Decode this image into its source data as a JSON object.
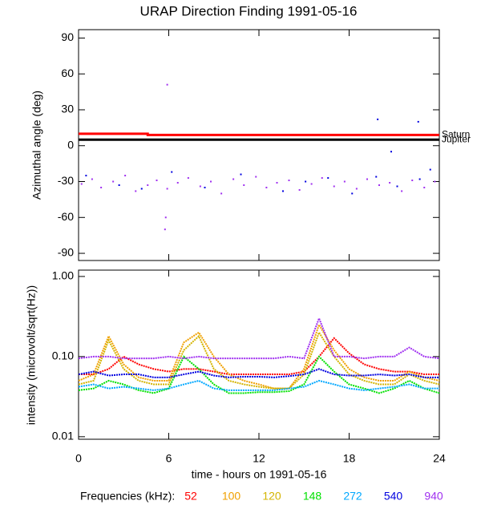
{
  "chart_data": [
    {
      "type": "scatter",
      "title": "URAP Direction Finding  1991-05-16",
      "ylabel": "Azimuthal angle (deg)",
      "xlim": [
        0,
        24
      ],
      "xticks": [
        0,
        6,
        12,
        18,
        24
      ],
      "ylim": [
        -96,
        97
      ],
      "yticks": [
        -90,
        -60,
        -30,
        0,
        30,
        60,
        90
      ],
      "series": [
        {
          "color": "#a030f0",
          "x": [
            0.2,
            0.9,
            1.5,
            2.3,
            3.1,
            3.8,
            4.6,
            5.2,
            5.9,
            6.6,
            7.3,
            8.1,
            8.8,
            9.5,
            10.3,
            11.0,
            11.8,
            12.5,
            13.2,
            14.0,
            14.7,
            15.5,
            16.2,
            17.0,
            17.7,
            18.5,
            19.2,
            20.0,
            20.7,
            21.5,
            22.2,
            23.0,
            23.7,
            5.9,
            5.8,
            5.75
          ],
          "values": [
            -32,
            -28,
            -35,
            -30,
            -25,
            -38,
            -33,
            -29,
            -36,
            -31,
            -27,
            -34,
            -30,
            -40,
            -28,
            -33,
            -26,
            -35,
            -31,
            -29,
            -37,
            -32,
            -27,
            -34,
            -30,
            -36,
            -28,
            -33,
            -31,
            -38,
            -29,
            -35,
            -30,
            51,
            -60,
            -70
          ]
        },
        {
          "color": "#0000e0",
          "x": [
            0.5,
            2.7,
            4.2,
            6.2,
            8.4,
            10.8,
            13.6,
            15.1,
            16.6,
            18.2,
            19.8,
            21.2,
            22.6,
            23.4,
            20.8,
            19.9,
            22.7
          ],
          "values": [
            -25,
            -33,
            -36,
            -22,
            -35,
            -24,
            -38,
            -30,
            -27,
            -40,
            -26,
            -34,
            20,
            -20,
            -5,
            22,
            -28
          ]
        },
        {
          "name": "Saturn",
          "style": "line",
          "color": "#ff0000",
          "x": [
            0,
            4.6,
            4.6,
            24
          ],
          "values": [
            10,
            10,
            9,
            9
          ]
        },
        {
          "name": "Jupiter",
          "style": "line",
          "color": "#000000",
          "x": [
            0,
            24
          ],
          "values": [
            5,
            5
          ]
        }
      ]
    },
    {
      "type": "line",
      "ylabel": "intensity (microvolt/sqrt(Hz))",
      "xlabel": "time - hours on 1991-05-16",
      "log_scale": true,
      "legend_title": "Frequencies (kHz):",
      "xlim": [
        0,
        24
      ],
      "xticks": [
        0,
        6,
        12,
        18,
        24
      ],
      "ylim": [
        0.0093,
        1.2
      ],
      "yticks": [
        {
          "value": 0.01,
          "label": "0.01"
        },
        {
          "value": 0.1,
          "label": "0.10"
        },
        {
          "value": 1,
          "label": "1.00"
        }
      ],
      "x": [
        0,
        1,
        2,
        3,
        4,
        5,
        6,
        7,
        8,
        9,
        10,
        11,
        12,
        13,
        14,
        15,
        16,
        17,
        18,
        19,
        20,
        21,
        22,
        23,
        24
      ],
      "series": [
        {
          "name": "52",
          "color": "#ff0000",
          "values": [
            0.06,
            0.06,
            0.07,
            0.1,
            0.08,
            0.07,
            0.065,
            0.07,
            0.07,
            0.065,
            0.06,
            0.06,
            0.06,
            0.06,
            0.06,
            0.065,
            0.1,
            0.17,
            0.11,
            0.08,
            0.07,
            0.065,
            0.065,
            0.06,
            0.06
          ]
        },
        {
          "name": "100",
          "color": "#f0a000",
          "values": [
            0.05,
            0.06,
            0.18,
            0.08,
            0.055,
            0.05,
            0.05,
            0.15,
            0.2,
            0.1,
            0.06,
            0.05,
            0.045,
            0.04,
            0.04,
            0.07,
            0.25,
            0.12,
            0.07,
            0.055,
            0.05,
            0.05,
            0.065,
            0.055,
            0.05
          ]
        },
        {
          "name": "120",
          "color": "#d4b400",
          "values": [
            0.045,
            0.05,
            0.16,
            0.07,
            0.05,
            0.045,
            0.045,
            0.12,
            0.18,
            0.07,
            0.05,
            0.045,
            0.042,
            0.04,
            0.04,
            0.06,
            0.2,
            0.1,
            0.06,
            0.05,
            0.045,
            0.045,
            0.06,
            0.05,
            0.045
          ]
        },
        {
          "name": "148",
          "color": "#00e000",
          "values": [
            0.038,
            0.04,
            0.05,
            0.045,
            0.038,
            0.035,
            0.04,
            0.1,
            0.07,
            0.045,
            0.035,
            0.035,
            0.036,
            0.036,
            0.037,
            0.045,
            0.1,
            0.065,
            0.045,
            0.04,
            0.035,
            0.04,
            0.05,
            0.04,
            0.035
          ]
        },
        {
          "name": "272",
          "color": "#00a8ff",
          "values": [
            0.042,
            0.045,
            0.04,
            0.042,
            0.04,
            0.038,
            0.04,
            0.045,
            0.05,
            0.04,
            0.038,
            0.038,
            0.038,
            0.038,
            0.04,
            0.042,
            0.05,
            0.045,
            0.04,
            0.038,
            0.04,
            0.042,
            0.045,
            0.04,
            0.04
          ]
        },
        {
          "name": "540",
          "color": "#0000e0",
          "values": [
            0.06,
            0.065,
            0.058,
            0.06,
            0.06,
            0.055,
            0.055,
            0.06,
            0.065,
            0.058,
            0.055,
            0.056,
            0.056,
            0.055,
            0.057,
            0.06,
            0.07,
            0.06,
            0.058,
            0.058,
            0.06,
            0.058,
            0.06,
            0.055,
            0.055
          ]
        },
        {
          "name": "940",
          "color": "#a030f0",
          "values": [
            0.095,
            0.1,
            0.1,
            0.095,
            0.095,
            0.095,
            0.1,
            0.095,
            0.1,
            0.095,
            0.095,
            0.095,
            0.095,
            0.095,
            0.1,
            0.095,
            0.3,
            0.1,
            0.1,
            0.095,
            0.1,
            0.1,
            0.13,
            0.1,
            0.095
          ]
        }
      ]
    }
  ]
}
